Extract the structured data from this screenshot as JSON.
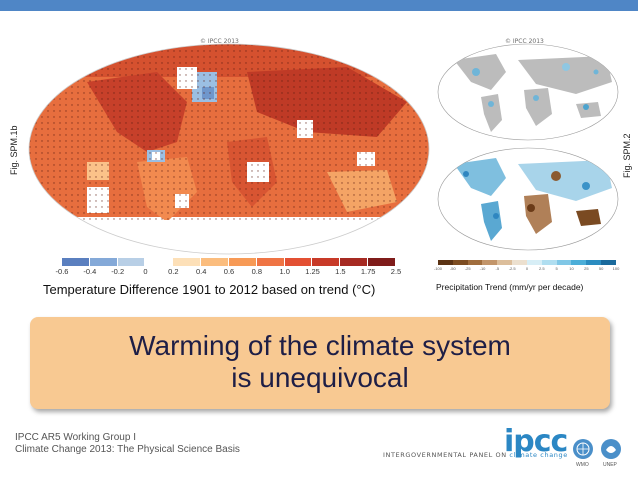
{
  "copyright_left": "© IPCC 2013",
  "copyright_right": "© IPCC 2013",
  "fig_left": "Fig. SPM.1b",
  "fig_right": "Fig. SPM.2",
  "temperature_scale": {
    "ticks": [
      "-0.6",
      "-0.4",
      "-0.2",
      "0",
      "0.2",
      "0.4",
      "0.6",
      "0.8",
      "1.0",
      "1.25",
      "1.5",
      "1.75",
      "2.5"
    ],
    "colors": [
      "#5a7fbf",
      "#84a9d8",
      "#b8cfe6",
      "#ffffff",
      "#fde0b8",
      "#fbbd7e",
      "#f79a56",
      "#ef7444",
      "#e35033",
      "#c83a28",
      "#a62a22",
      "#7f1c1a"
    ],
    "caption": "Temperature Difference 1901 to 2012 based on trend (°C)"
  },
  "precipitation_scale": {
    "ticks": [
      "-100",
      "-50",
      "-25",
      "-10",
      "-5",
      "-2.5",
      "0",
      "2.5",
      "5",
      "10",
      "25",
      "50",
      "100"
    ],
    "colors": [
      "#5b3314",
      "#7d4d22",
      "#a06d3d",
      "#c2956a",
      "#dcbe9b",
      "#ece0cf",
      "#d7eef6",
      "#b0def0",
      "#80c7e6",
      "#4caed8",
      "#2b8cc0",
      "#1a6a9c"
    ],
    "caption": "Precipitation Trend (mm/yr per decade)"
  },
  "banner": {
    "line1": "Warming of the climate system",
    "line2": "is unequivocal",
    "color": "#f8c992"
  },
  "footer": {
    "line1": "IPCC AR5 Working Group I",
    "line2": "Climate Change 2013: The Physical Science Basis",
    "logo": "ipcc",
    "panel_prefix": "INTERGOVERNMENTAL PANEL ON",
    "panel_suffix": "climate change",
    "wmo": "WMO",
    "unep": "UNEP"
  }
}
